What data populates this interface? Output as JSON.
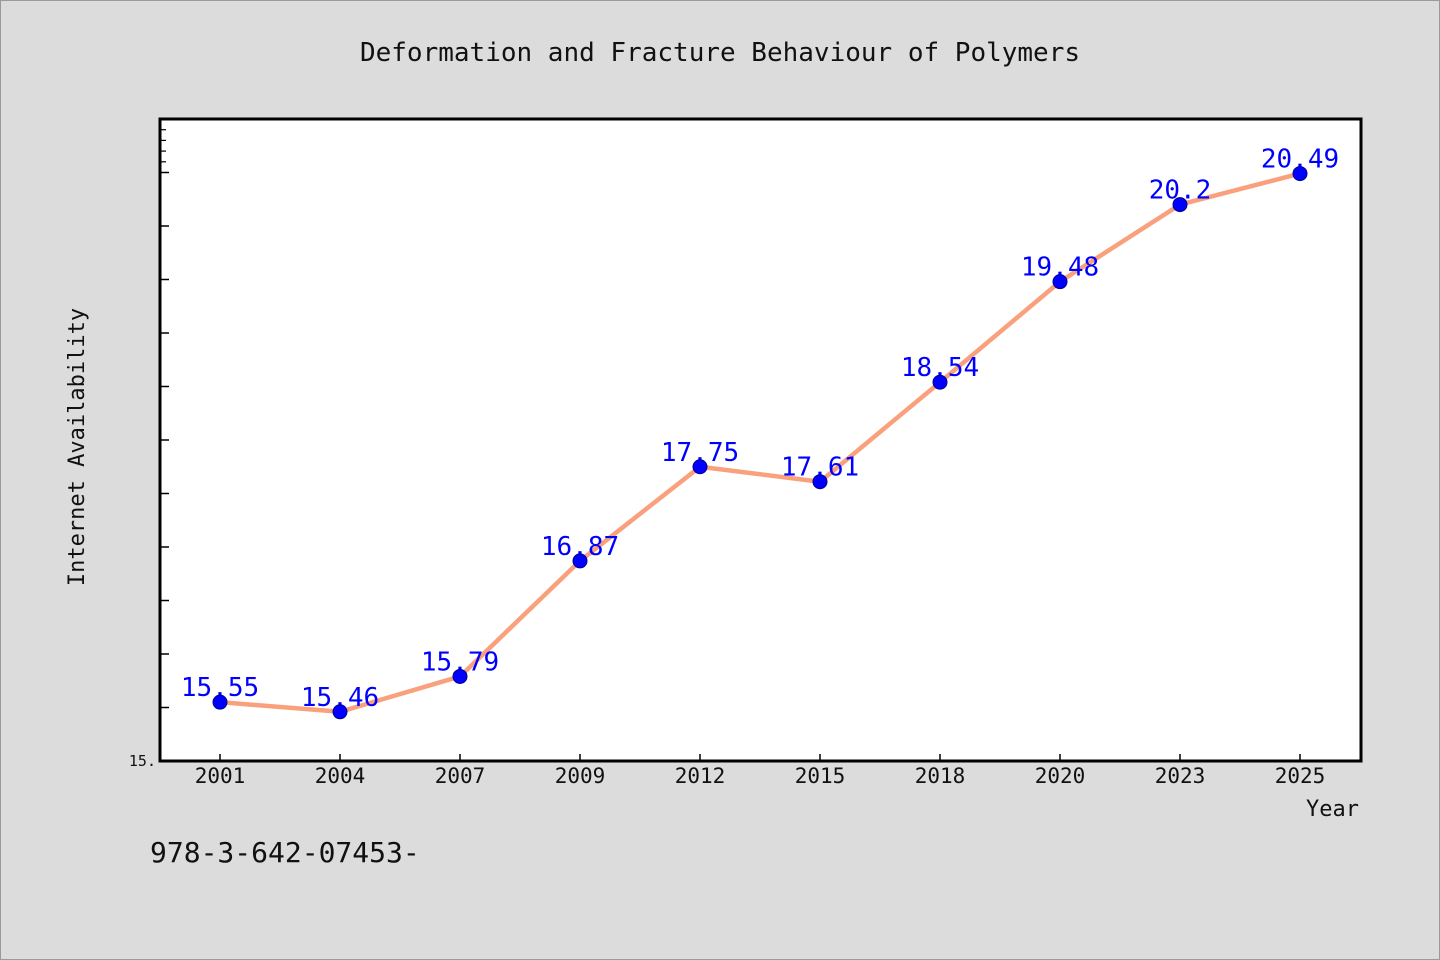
{
  "chart_data": {
    "type": "line",
    "title": "Deformation and Fracture Behaviour of Polymers",
    "xlabel": "Year",
    "ylabel": "Internet Availability",
    "categories": [
      "2001",
      "2004",
      "2007",
      "2009",
      "2012",
      "2015",
      "2018",
      "2020",
      "2023",
      "2025"
    ],
    "values": [
      15.55,
      15.46,
      15.79,
      16.87,
      17.75,
      17.61,
      18.54,
      19.48,
      20.2,
      20.49
    ],
    "data_labels": [
      "15.55",
      "15.46",
      "15.79",
      "16.87",
      "17.75",
      "17.61",
      "18.54",
      "19.48",
      "20.2",
      "20.49"
    ],
    "ylim": [
      15,
      21
    ],
    "ytick_step": 0.5,
    "ytick_labels": [
      {
        "value": 15,
        "label": "15."
      }
    ],
    "grid": false,
    "colors": {
      "background": "#dcdcdc",
      "plot_background": "#ffffff",
      "line": "#f9a07c",
      "marker": "#0000ff",
      "marker_edge": "#00008b",
      "data_label": "#0000ff"
    }
  },
  "footer": {
    "text": "978-3-642-07453-"
  }
}
